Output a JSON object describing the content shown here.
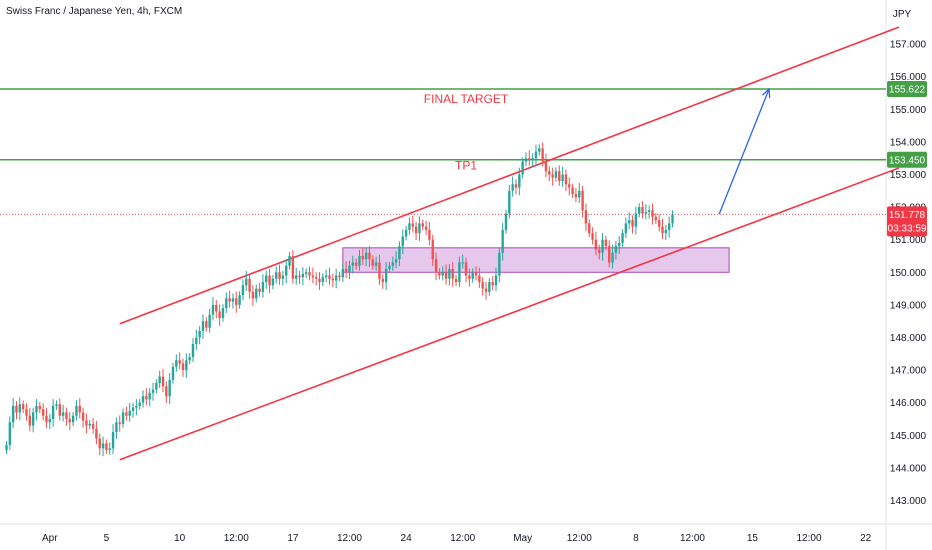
{
  "header": {
    "symbol_title": "Swiss Franc / Japanese Yen, 4h, FXCM"
  },
  "colors": {
    "up": "#26a69a",
    "down": "#ef5350",
    "channel": "#f23645",
    "horizontal": "#43a047",
    "zone_fill": "#e1bee7",
    "zone_border": "#ab47bc",
    "projection": "#2962ff",
    "current_price_line": "#ef5350",
    "green_label_bg": "#43a047",
    "current_label_bg": "#f23645"
  },
  "chart_data": {
    "type": "candlestick",
    "symbol": "Swiss Franc / Japanese Yen",
    "interval": "4h",
    "source": "FXCM",
    "currency": "JPY",
    "y_axis": {
      "range": [
        142.6,
        157.8
      ],
      "ticks": [
        "143.000",
        "144.000",
        "145.000",
        "146.000",
        "147.000",
        "148.000",
        "149.000",
        "150.000",
        "151.000",
        "152.000",
        "153.000",
        "154.000",
        "155.000",
        "156.000",
        "157.000"
      ]
    },
    "x_axis": {
      "ticks": [
        {
          "label": "Apr",
          "i": 13
        },
        {
          "label": "5",
          "i": 30
        },
        {
          "label": "10",
          "i": 52
        },
        {
          "label": "12:00",
          "i": 69
        },
        {
          "label": "17",
          "i": 86
        },
        {
          "label": "12:00",
          "i": 103
        },
        {
          "label": "24",
          "i": 120
        },
        {
          "label": "12:00",
          "i": 137
        },
        {
          "label": "May",
          "i": 155
        },
        {
          "label": "12:00",
          "i": 172
        },
        {
          "label": "8",
          "i": 189
        },
        {
          "label": "12:00",
          "i": 206
        },
        {
          "label": "15",
          "i": 224
        },
        {
          "label": "12:00",
          "i": 241
        },
        {
          "label": "22",
          "i": 258
        }
      ],
      "total_slots": 270
    },
    "closes": [
      144.7,
      145.4,
      145.9,
      145.7,
      145.95,
      145.8,
      145.6,
      145.3,
      145.7,
      145.9,
      145.8,
      145.6,
      145.4,
      145.5,
      145.9,
      145.95,
      145.6,
      145.7,
      145.5,
      145.4,
      145.6,
      145.9,
      145.7,
      145.45,
      145.3,
      145.35,
      145.2,
      144.9,
      144.6,
      144.75,
      144.55,
      144.6,
      145.1,
      145.4,
      145.35,
      145.7,
      145.6,
      145.75,
      145.85,
      145.9,
      146.0,
      146.2,
      146.1,
      146.3,
      146.4,
      146.6,
      146.8,
      146.5,
      146.2,
      146.7,
      147.1,
      147.3,
      147.2,
      147.0,
      147.3,
      147.4,
      147.8,
      148.0,
      148.2,
      148.5,
      148.3,
      148.7,
      149.0,
      148.8,
      148.6,
      148.9,
      149.2,
      149.1,
      149.2,
      149.0,
      149.3,
      149.6,
      149.8,
      149.4,
      149.2,
      149.5,
      149.4,
      149.7,
      149.9,
      149.6,
      149.8,
      150.0,
      149.8,
      149.9,
      150.2,
      150.5,
      149.8,
      149.9,
      149.85,
      149.95,
      150.0,
      149.9,
      149.85,
      149.8,
      149.7,
      149.85,
      149.9,
      149.8,
      149.75,
      149.9,
      149.85,
      150.1,
      150.0,
      150.2,
      150.3,
      150.2,
      150.5,
      150.4,
      150.6,
      150.4,
      150.2,
      150.3,
      149.8,
      149.7,
      150.1,
      150.2,
      150.3,
      150.4,
      150.8,
      151.1,
      151.3,
      151.5,
      151.4,
      151.2,
      151.5,
      151.4,
      151.3,
      151.0,
      150.4,
      150.0,
      149.9,
      150.0,
      149.8,
      150.1,
      149.8,
      149.7,
      150.3,
      150.3,
      149.9,
      149.8,
      150.0,
      149.9,
      149.7,
      149.5,
      149.4,
      149.7,
      149.6,
      149.9,
      150.6,
      151.3,
      151.8,
      152.5,
      152.7,
      152.6,
      153.0,
      153.4,
      153.5,
      153.45,
      153.5,
      153.7,
      153.8,
      153.4,
      153.1,
      153.0,
      152.9,
      153.1,
      152.8,
      153.0,
      152.7,
      152.6,
      152.4,
      152.3,
      152.5,
      151.9,
      151.5,
      151.2,
      151.0,
      150.7,
      150.6,
      151.0,
      150.8,
      150.3,
      150.6,
      150.8,
      150.9,
      151.2,
      151.5,
      151.6,
      151.4,
      151.8,
      152.0,
      151.8,
      151.85,
      151.9,
      151.7,
      151.6,
      151.4,
      151.2,
      151.3,
      151.5,
      151.78
    ],
    "channel": {
      "upper": {
        "from": [
          34,
          148.42
        ],
        "to": [
          268,
          157.52
        ]
      },
      "lower": {
        "from": [
          34,
          144.25
        ],
        "to": [
          268,
          153.2
        ]
      }
    },
    "zone": {
      "x": [
        101,
        217
      ],
      "y": [
        150.0,
        150.75
      ]
    },
    "horizontal_levels": [
      {
        "value": 155.622,
        "label": "155.622"
      },
      {
        "value": 153.45,
        "label": "153.450"
      }
    ],
    "current_price": {
      "value": 151.778,
      "label": "151.778",
      "countdown": "03:33:59"
    },
    "projection": {
      "from": [
        214,
        151.78
      ],
      "to": [
        229,
        155.62
      ]
    },
    "annotations": [
      {
        "text": "FINAL TARGET",
        "i": 138,
        "y": 155.2,
        "color": "#f23645"
      },
      {
        "text": "TP1",
        "i": 138,
        "y": 153.15,
        "color": "#f23645"
      }
    ]
  }
}
